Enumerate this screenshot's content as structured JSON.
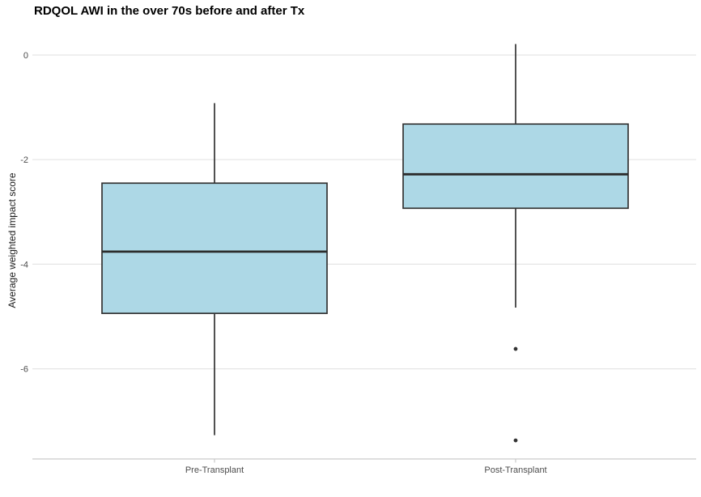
{
  "page": {
    "background": "#FFFFFF"
  },
  "chart_data": {
    "type": "box",
    "title": "RDQOL AWI in the over 70s before and after Tx",
    "ylabel": "Average weighted impact score",
    "xlabel": "",
    "categories": [
      "Pre-Transplant",
      "Post-Transplant"
    ],
    "y_ticks": [
      0,
      -2,
      -4,
      -6
    ],
    "ylim": [
      -7.8,
      0.6
    ],
    "grid": "horizontal major gridlines only",
    "legend": "none",
    "series": [
      {
        "name": "Pre-Transplant",
        "whisker_low": -7.27,
        "q1": -4.94,
        "median": -3.76,
        "q3": -2.45,
        "whisker_high": -0.92,
        "outliers": []
      },
      {
        "name": "Post-Transplant",
        "whisker_low": -4.83,
        "q1": -2.93,
        "median": -2.28,
        "q3": -1.32,
        "whisker_high": 0.21,
        "outliers": [
          -5.62,
          -7.37
        ]
      }
    ],
    "colors": {
      "box_fill": "#ADD8E6",
      "box_border": "#333333",
      "median_line": "#2B2B2B",
      "outlier": "#333333",
      "gridline": "#E5E5E5",
      "axis_line": "#C9C9C9",
      "tick_label": "#4D4D4D",
      "title_color": "#000000"
    }
  }
}
